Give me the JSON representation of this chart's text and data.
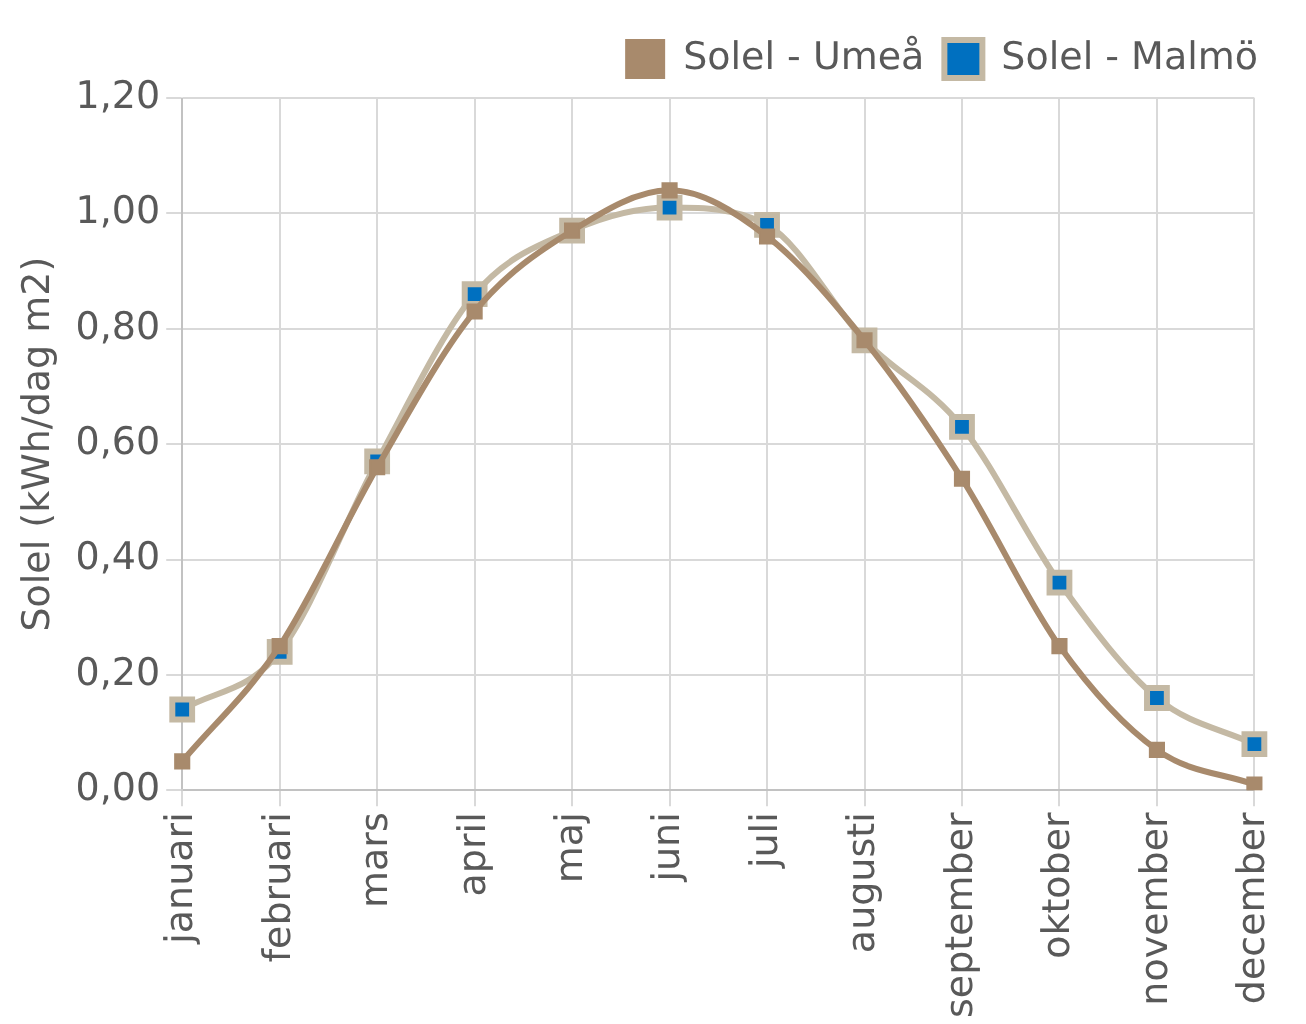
{
  "chart_data": {
    "type": "line",
    "ylabel": "Solel (kWh/dag m2)",
    "categories": [
      "januari",
      "februari",
      "mars",
      "april",
      "maj",
      "juni",
      "juli",
      "augusti",
      "september",
      "oktober",
      "november",
      "december"
    ],
    "series": [
      {
        "name": "Solel - Malmö",
        "color": "#c4b9a4",
        "values": [
          0.14,
          0.24,
          0.57,
          0.86,
          0.97,
          1.01,
          0.98,
          0.78,
          0.63,
          0.36,
          0.16,
          0.08
        ]
      },
      {
        "name": "Solel - Umeå",
        "color": "#a88a6c",
        "values": [
          0.05,
          0.25,
          0.56,
          0.83,
          0.97,
          1.04,
          0.96,
          0.78,
          0.54,
          0.25,
          0.07,
          0.01
        ]
      }
    ],
    "ylim": [
      0,
      1.2
    ],
    "yticks": [
      {
        "value": 0,
        "label": "0,00"
      },
      {
        "value": 0.2,
        "label": "0,20"
      },
      {
        "value": 0.4,
        "label": "0,40"
      },
      {
        "value": 0.6,
        "label": "0,60"
      },
      {
        "value": 0.8,
        "label": "0,80"
      },
      {
        "value": 1,
        "label": "1,00"
      },
      {
        "value": 1.2,
        "label": "1,20"
      }
    ],
    "grid": true,
    "legend": "top right",
    "marker": "square",
    "line_style": "solid"
  }
}
